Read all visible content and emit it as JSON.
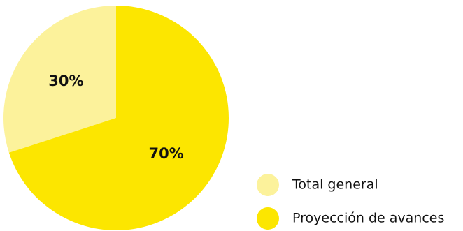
{
  "chart_data": {
    "type": "pie",
    "title": "",
    "slices": [
      {
        "name": "Total general",
        "value": 30,
        "label": "30%",
        "color": "#FCF29B"
      },
      {
        "name": "Proyección de avances",
        "value": 70,
        "label": "70%",
        "color": "#FCE600"
      }
    ],
    "legend_position": "bottom-right",
    "start_angle_deg": 0,
    "direction": "counterclockwise"
  }
}
